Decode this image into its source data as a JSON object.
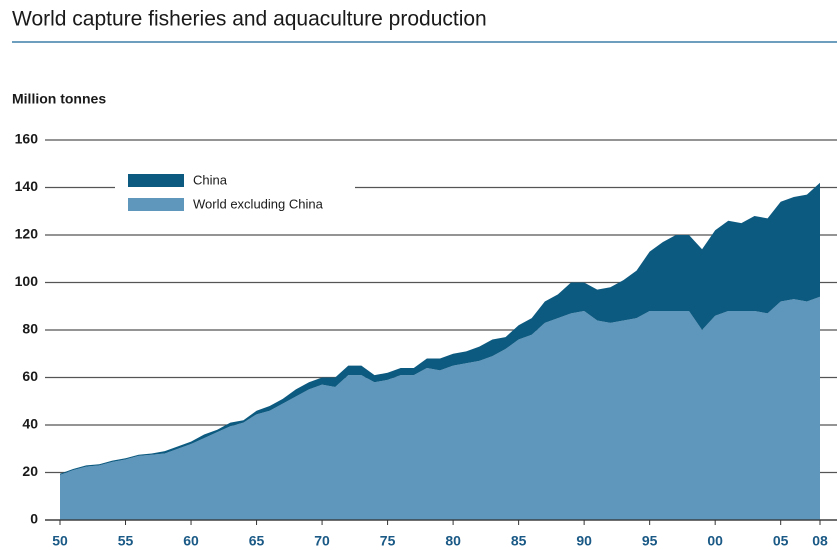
{
  "chart_data": {
    "type": "stacked_area",
    "title": "World capture fisheries and aquaculture production",
    "y_label": "Million tonnes",
    "x": [
      1950,
      1951,
      1952,
      1953,
      1954,
      1955,
      1956,
      1957,
      1958,
      1959,
      1960,
      1961,
      1962,
      1963,
      1964,
      1965,
      1966,
      1967,
      1968,
      1969,
      1970,
      1971,
      1972,
      1973,
      1974,
      1975,
      1976,
      1977,
      1978,
      1979,
      1980,
      1981,
      1982,
      1983,
      1984,
      1985,
      1986,
      1987,
      1988,
      1989,
      1990,
      1991,
      1992,
      1993,
      1994,
      1995,
      1996,
      1997,
      1998,
      1999,
      2000,
      2001,
      2002,
      2003,
      2004,
      2005,
      2006,
      2007,
      2008
    ],
    "series": [
      {
        "name": "World excluding China",
        "color": "#5f96bb",
        "values": [
          19,
          21,
          22.5,
          23,
          24.5,
          25.5,
          27,
          27.5,
          28,
          30,
          32,
          34.5,
          37,
          39.5,
          41,
          44.5,
          46,
          49,
          52,
          55,
          57,
          56,
          61,
          61,
          58,
          59,
          61,
          61,
          64,
          63,
          65,
          66,
          67,
          69,
          72,
          76,
          78,
          83,
          85,
          87,
          88,
          84,
          83,
          84,
          85,
          88,
          88,
          88,
          88,
          80,
          86,
          88,
          88,
          88,
          87,
          92,
          93,
          92,
          94
        ]
      },
      {
        "name": "China",
        "color": "#0d5a80",
        "values": [
          0.5,
          0.5,
          0.5,
          0.5,
          0.5,
          0.5,
          0.5,
          0.5,
          1,
          1,
          1,
          1.5,
          1,
          1.5,
          1,
          1.5,
          2,
          2,
          3,
          3,
          3,
          4,
          4,
          4,
          3,
          3,
          3,
          3,
          4,
          5,
          5,
          5,
          6,
          7,
          5,
          6,
          7,
          9,
          10,
          13,
          12,
          13,
          15,
          17,
          20,
          25,
          29,
          32,
          32,
          34,
          36,
          38,
          37,
          40,
          40,
          42,
          43,
          45,
          48
        ]
      }
    ],
    "xlim": [
      1950,
      2008
    ],
    "xticks": [
      {
        "value": 1950,
        "label": "50"
      },
      {
        "value": 1955,
        "label": "55"
      },
      {
        "value": 1960,
        "label": "60"
      },
      {
        "value": 1965,
        "label": "65"
      },
      {
        "value": 1970,
        "label": "70"
      },
      {
        "value": 1975,
        "label": "75"
      },
      {
        "value": 1980,
        "label": "80"
      },
      {
        "value": 1985,
        "label": "85"
      },
      {
        "value": 1990,
        "label": "90"
      },
      {
        "value": 1995,
        "label": "95"
      },
      {
        "value": 2000,
        "label": "00"
      },
      {
        "value": 2005,
        "label": "05"
      },
      {
        "value": 2008,
        "label": "08"
      }
    ],
    "ylim": [
      0,
      160
    ],
    "yticks": [
      0,
      20,
      40,
      60,
      80,
      100,
      120,
      140,
      160
    ],
    "grid": true
  }
}
